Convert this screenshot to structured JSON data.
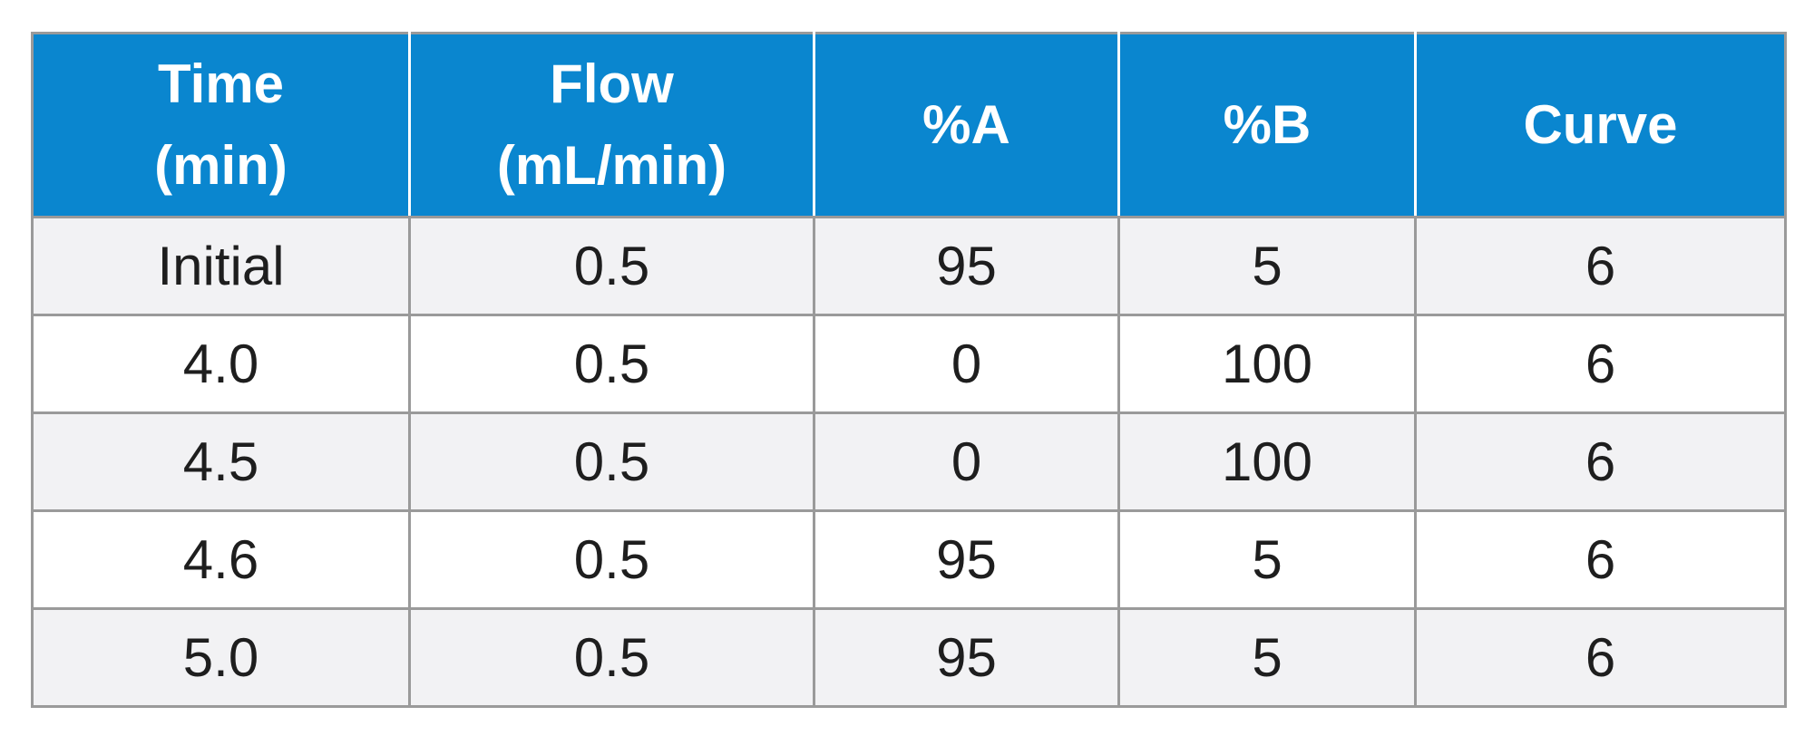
{
  "colors": {
    "header_bg": "#0a86cf",
    "header_text": "#ffffff",
    "odd_row_bg": "#f2f2f4",
    "even_row_bg": "#ffffff",
    "border": "#9a9a9a",
    "cell_text": "#1e1e1e"
  },
  "table": {
    "headers": [
      {
        "line1": "Time",
        "line2": "(min)"
      },
      {
        "line1": "Flow",
        "line2": "(mL/min)"
      },
      {
        "line1": "%A",
        "line2": ""
      },
      {
        "line1": "%B",
        "line2": ""
      },
      {
        "line1": "Curve",
        "line2": ""
      }
    ],
    "rows": [
      [
        "Initial",
        "0.5",
        "95",
        "5",
        "6"
      ],
      [
        "4.0",
        "0.5",
        "0",
        "100",
        "6"
      ],
      [
        "4.5",
        "0.5",
        "0",
        "100",
        "6"
      ],
      [
        "4.6",
        "0.5",
        "95",
        "5",
        "6"
      ],
      [
        "5.0",
        "0.5",
        "95",
        "5",
        "6"
      ]
    ]
  }
}
